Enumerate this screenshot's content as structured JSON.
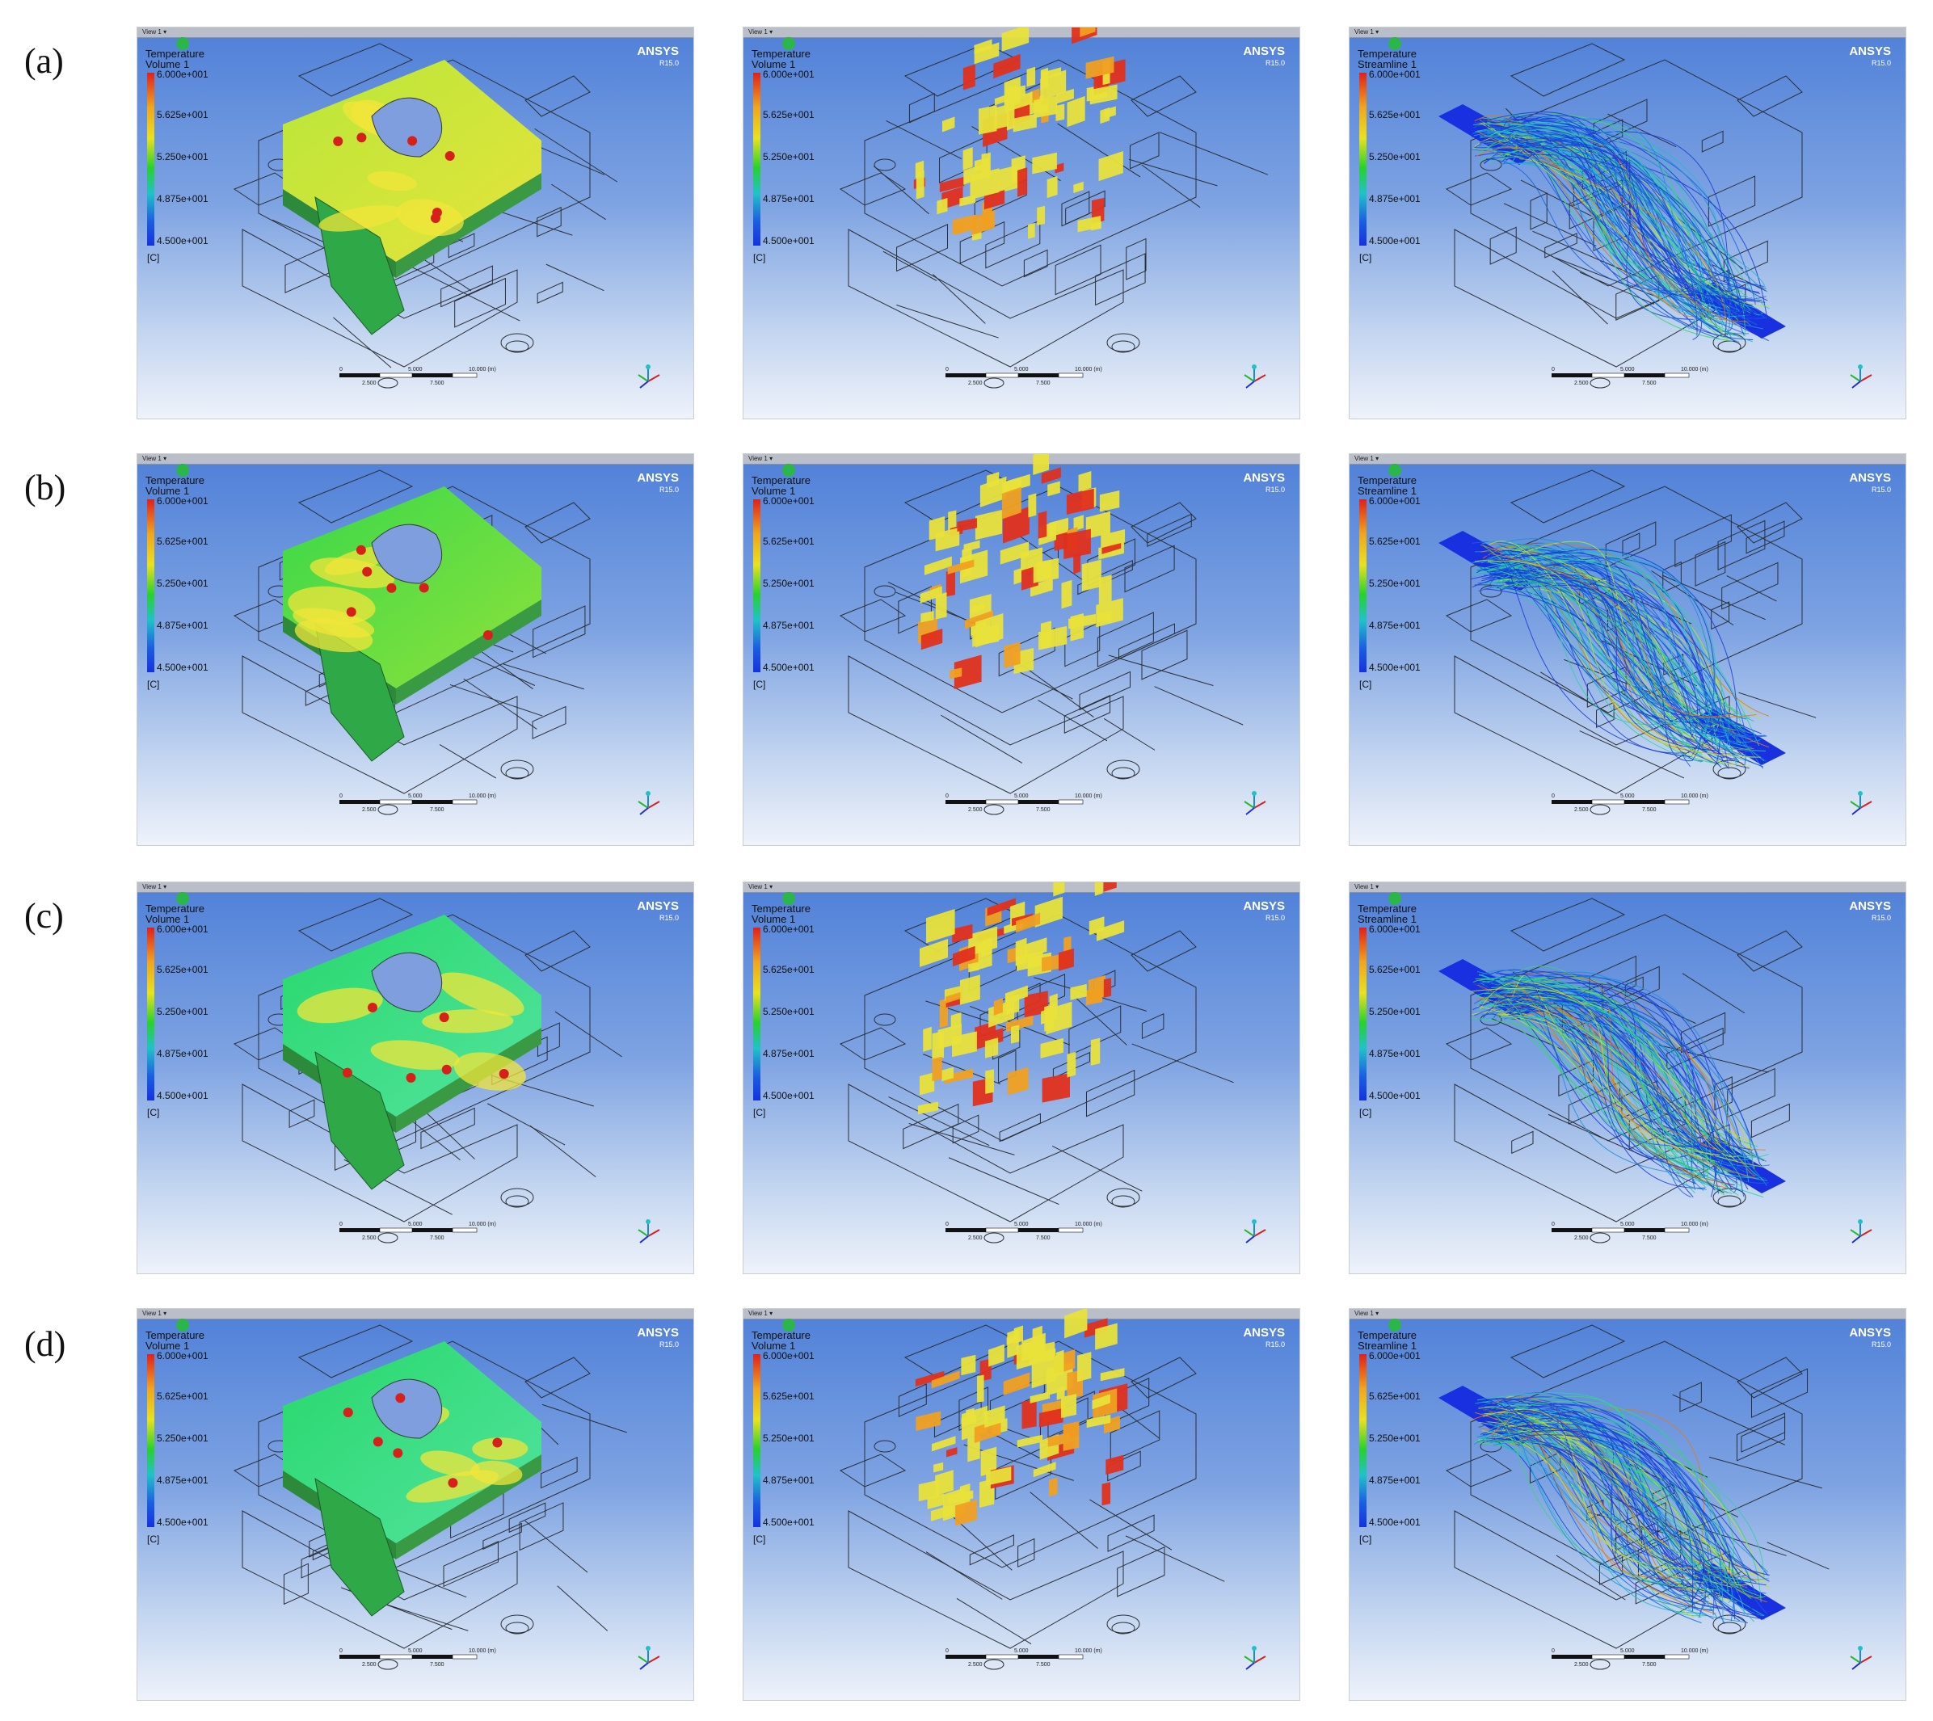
{
  "row_labels": [
    "(a)",
    "(b)",
    "(c)",
    "(d)"
  ],
  "panel_common": {
    "window_tab": "View 1",
    "quantity": "Temperature",
    "brand": "ANSYS",
    "version": "R15.0",
    "legend_values": [
      "6.000e+001",
      "5.625e+001",
      "5.250e+001",
      "4.875e+001",
      "4.500e+001"
    ],
    "unit": "[C]",
    "scale_labels_top": [
      "0",
      "5.000",
      "10.000 (m)"
    ],
    "scale_labels_bottom": [
      "2.500",
      "7.500"
    ]
  },
  "columns": [
    {
      "object": "Volume 1",
      "mode": "surface"
    },
    {
      "object": "Volume 1",
      "mode": "isovolume"
    },
    {
      "object": "Streamline 1",
      "mode": "streamline"
    }
  ],
  "colors": {
    "hot": "#e0201a",
    "warm": "#e9e21b",
    "mid": "#28d22a",
    "cool": "#20c2c8",
    "cold": "#1631e2"
  }
}
